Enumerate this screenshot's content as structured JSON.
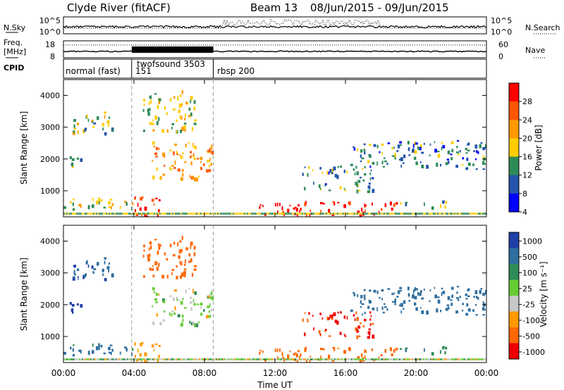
{
  "header": {
    "title": "Clyde River (fitACF)",
    "beam": "Beam 13",
    "date_range": "08/Jun/2015 - 09/Jun/2015"
  },
  "nsky_panel": {
    "left_label": "N.Sky",
    "left_ticks": [
      "10^5",
      "10^0"
    ],
    "right_label": "N.Search",
    "right_ticks": [
      "10^5",
      "10^0"
    ]
  },
  "freq_panel": {
    "left_label_1": "Freq.",
    "left_label_2": "[MHz]",
    "left_ticks": [
      "18",
      "8"
    ],
    "right_label": "Nave",
    "right_ticks": [
      "60",
      "0"
    ]
  },
  "cpid_panel": {
    "label": "CPID",
    "modes": [
      {
        "name": "normal (fast)",
        "start_hour": 0
      },
      {
        "name": "151",
        "start_hour": 3.87
      },
      {
        "name": "twofsound 3503",
        "start_hour": 3.87
      },
      {
        "name": "rbsp 200",
        "start_hour": 8.5
      }
    ]
  },
  "power_panel": {
    "ylabel": "Slant Range [km]",
    "yticks": [
      "4000",
      "3000",
      "2000",
      "1000"
    ],
    "colorbar_label": "Power [dB]",
    "colorbar_ticks": [
      "28",
      "24",
      "20",
      "16",
      "12",
      "8",
      "4"
    ],
    "colorbar_colors": [
      "#ff0000",
      "#ff5500",
      "#ff9900",
      "#ffcc00",
      "#2e8b57",
      "#2255aa",
      "#0000ff"
    ]
  },
  "velocity_panel": {
    "ylabel": "Slant Range [km]",
    "yticks": [
      "4000",
      "3000",
      "2000",
      "1000"
    ],
    "colorbar_label": "Velocity [m s⁻¹]",
    "colorbar_ticks": [
      "1000",
      "500",
      "100",
      "25",
      "-25",
      "-100",
      "-500",
      "-1000"
    ],
    "colorbar_colors": [
      "#1f3fa8",
      "#2f6f9f",
      "#2e8b57",
      "#66cc33",
      "#c8c8c8",
      "#ff9900",
      "#ff6600",
      "#ee0000"
    ]
  },
  "x_axis": {
    "ticks": [
      "00:00",
      "04:00",
      "08:00",
      "12:00",
      "16:00",
      "20:00",
      "00:00"
    ],
    "label": "Time UT"
  },
  "chart_data": {
    "type": "heatmap",
    "title": "Clyde River (fitACF)",
    "subtitle": "Beam 13 08/Jun/2015 - 09/Jun/2015",
    "xlabel": "Time UT",
    "ylabel": "Slant Range [km]",
    "xlim_hours": [
      0,
      24
    ],
    "ylim_km": [
      180,
      4500
    ],
    "mode_change_hours": [
      3.87,
      8.5
    ],
    "power_db_scale": [
      4,
      28
    ],
    "velocity_scale_ms": [
      -1000,
      1000
    ],
    "echo_regions": [
      {
        "t0": 0.0,
        "t1": 3.9,
        "r0": 400,
        "r1": 800,
        "power_db": 16,
        "velocity_ms": 150
      },
      {
        "t0": 0.5,
        "t1": 3.0,
        "r0": 2800,
        "r1": 3500,
        "power_db": 14,
        "velocity_ms": 400
      },
      {
        "t0": 0.0,
        "t1": 1.0,
        "r0": 1700,
        "r1": 2100,
        "power_db": 12,
        "velocity_ms": 900
      },
      {
        "t0": 4.0,
        "t1": 5.5,
        "r0": 200,
        "r1": 900,
        "power_db": 28,
        "velocity_ms": -50
      },
      {
        "t0": 5.0,
        "t1": 8.5,
        "r0": 1400,
        "r1": 2600,
        "power_db": 20,
        "velocity_ms": 0
      },
      {
        "t0": 4.5,
        "t1": 7.5,
        "r0": 2900,
        "r1": 4200,
        "power_db": 16,
        "velocity_ms": -300
      },
      {
        "t0": 11.0,
        "t1": 19.0,
        "r0": 250,
        "r1": 700,
        "power_db": 28,
        "velocity_ms": -200
      },
      {
        "t0": 19.0,
        "t1": 22.0,
        "r0": 500,
        "r1": 700,
        "power_db": 14,
        "velocity_ms": 80
      },
      {
        "t0": 13.5,
        "t1": 17.5,
        "r0": 1000,
        "r1": 1800,
        "power_db": 10,
        "velocity_ms": -600
      },
      {
        "t0": 16.0,
        "t1": 24.0,
        "r0": 1700,
        "r1": 2600,
        "power_db": 10,
        "velocity_ms": 300
      }
    ]
  }
}
